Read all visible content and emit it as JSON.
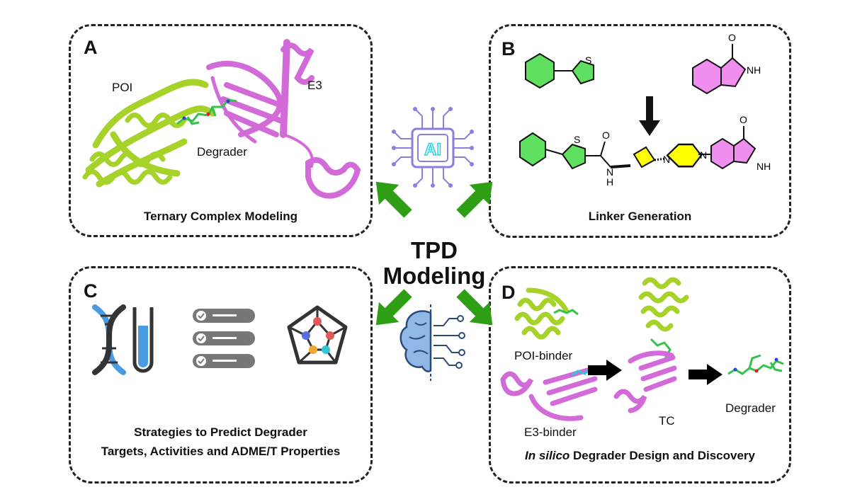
{
  "center": {
    "line1": "TPD",
    "line2": "Modeling",
    "chip_text": "AI"
  },
  "panelA": {
    "letter": "A",
    "caption": "Ternary Complex Modeling",
    "poi": "POI",
    "e3": "E3",
    "degrader": "Degrader"
  },
  "panelB": {
    "letter": "B",
    "caption": "Linker Generation",
    "s1": "S",
    "nh1": "NH",
    "o1": "O",
    "s2": "S",
    "o2": "O",
    "n_amide": "N",
    "h_amide": "H",
    "n1": "N",
    "n2": "N",
    "o3": "O",
    "nh2": "NH"
  },
  "panelC": {
    "letter": "C",
    "caption_line1": "Strategies to Predict Degrader",
    "caption_line2": "Targets, Activities and ADME/T Properties"
  },
  "panelD": {
    "letter": "D",
    "caption_italic": "In silico",
    "caption_rest": " Degrader Design and Discovery",
    "poi_binder": "POI-binder",
    "e3_binder": "E3-binder",
    "tc": "TC",
    "degrader": "Degrader"
  },
  "colors": {
    "poi_green": "#a6d22a",
    "e3_magenta": "#d26ad8",
    "arrow_green": "#2e9e15",
    "ligand_green": "#33c24a",
    "ai_purple": "#8a7fe0",
    "ai_cyan": "#27d3e0",
    "brain_blue": "#8fb8e8",
    "ring_green": "#5fe060",
    "ring_magenta": "#f08ef0",
    "ring_yellow": "#ffff00"
  },
  "icons": [
    "ai-chip-icon",
    "brain-circuit-icon",
    "dna-icon",
    "test-tube-icon",
    "checklist-icon",
    "molecular-network-icon"
  ]
}
